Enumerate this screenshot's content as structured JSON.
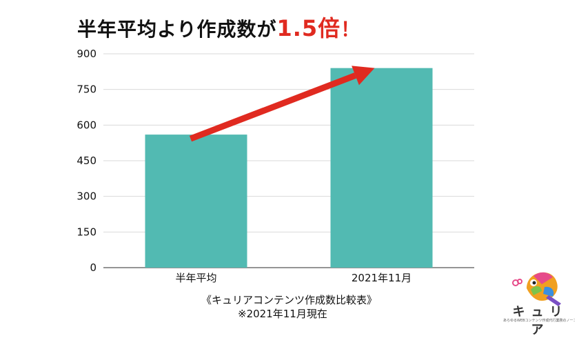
{
  "title": {
    "main": "半年平均より作成数が",
    "highlight": "1.5倍",
    "suffix": "！"
  },
  "chart_data": {
    "type": "bar",
    "categories": [
      "半年平均",
      "2021年11月"
    ],
    "values": [
      560,
      840
    ],
    "ylim": [
      0,
      900
    ],
    "yticks": [
      0,
      150,
      300,
      450,
      600,
      750,
      900
    ],
    "ytick_labels": [
      "0",
      "150",
      "300",
      "450",
      "600",
      "750",
      "900"
    ],
    "bar_color": "#52bab2",
    "arrow_color": "#e02a20",
    "grid": true
  },
  "captions": {
    "line1": "《キュリアコンテンツ作成数比較表》",
    "line2": "※2021年11月現在"
  },
  "logo": {
    "text": "キュリア",
    "subtext": "あらゆるWEBコンテンツ作成代行業務のノーコードツール"
  }
}
